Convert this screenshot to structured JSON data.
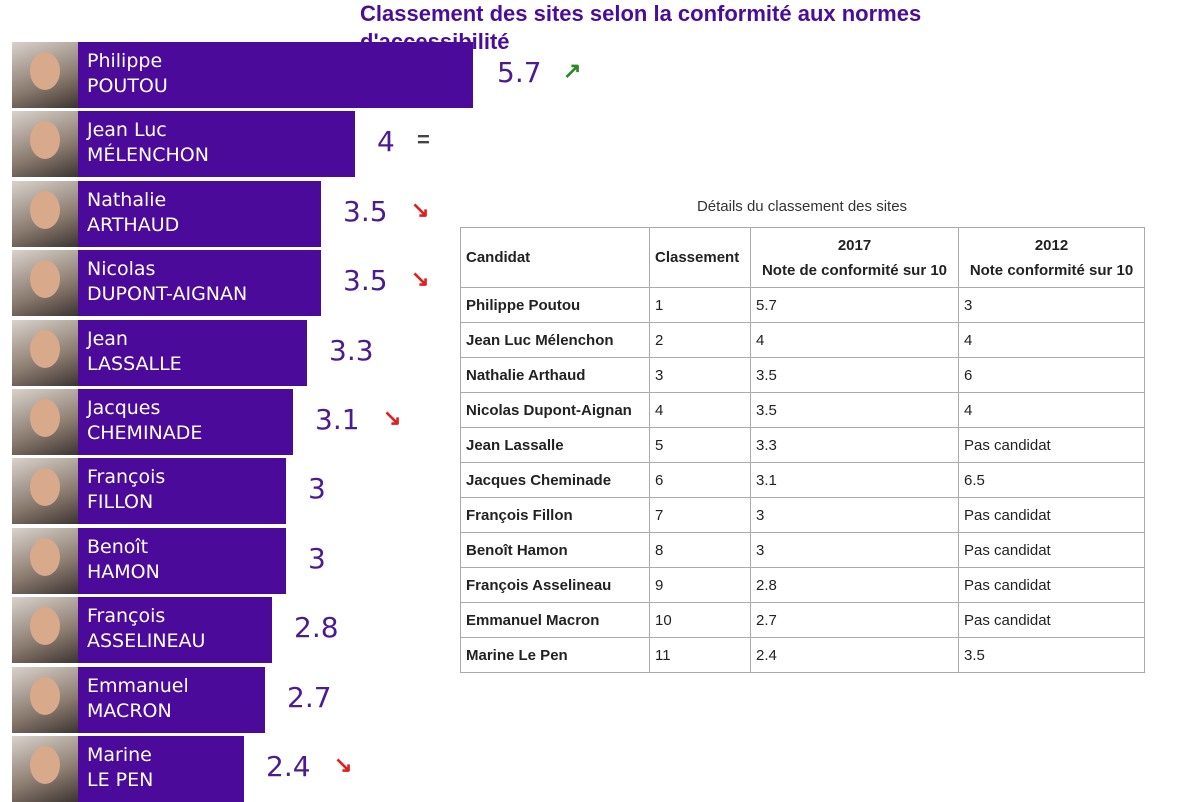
{
  "chart_data": {
    "type": "bar",
    "orientation": "horizontal",
    "title": "Classement des sites selon la conformité aux normes d'accessibilité",
    "bars": [
      {
        "first": "Philippe",
        "last": "POUTOU",
        "value": 5.7,
        "value_label": "5.7",
        "trend": "up"
      },
      {
        "first": "Jean Luc",
        "last": "MÉLENCHON",
        "value": 4,
        "value_label": "4",
        "trend": "equal"
      },
      {
        "first": "Nathalie",
        "last": "ARTHAUD",
        "value": 3.5,
        "value_label": "3.5",
        "trend": "down"
      },
      {
        "first": "Nicolas",
        "last": "DUPONT-AIGNAN",
        "value": 3.5,
        "value_label": "3.5",
        "trend": "down"
      },
      {
        "first": "Jean",
        "last": "LASSALLE",
        "value": 3.3,
        "value_label": "3.3",
        "trend": "none"
      },
      {
        "first": "Jacques",
        "last": "CHEMINADE",
        "value": 3.1,
        "value_label": "3.1",
        "trend": "down"
      },
      {
        "first": "François",
        "last": "FILLON",
        "value": 3,
        "value_label": "3",
        "trend": "none"
      },
      {
        "first": "Benoît",
        "last": "HAMON",
        "value": 3,
        "value_label": "3",
        "trend": "none"
      },
      {
        "first": "François",
        "last": "ASSELINEAU",
        "value": 2.8,
        "value_label": "2.8",
        "trend": "none"
      },
      {
        "first": "Emmanuel",
        "last": "MACRON",
        "value": 2.7,
        "value_label": "2.7",
        "trend": "none"
      },
      {
        "first": "Marine",
        "last": "LE PEN",
        "value": 2.4,
        "value_label": "2.4",
        "trend": "down"
      }
    ],
    "colors": {
      "bar": "#4b0a9a",
      "up": "#2a8a2a",
      "down": "#e02020",
      "equal": "#444444"
    }
  },
  "table": {
    "caption": "Détails du classement des sites",
    "headers": {
      "candidat": "Candidat",
      "classement": "Classement",
      "y2017": "2017",
      "y2017_sub": "Note de conformité sur 10",
      "y2012": "2012",
      "y2012_sub": "Note conformité sur 10"
    },
    "rows": [
      [
        "Philippe Poutou",
        "1",
        "5.7",
        "3"
      ],
      [
        "Jean Luc Mélenchon",
        "2",
        "4",
        "4"
      ],
      [
        "Nathalie Arthaud",
        "3",
        "3.5",
        "6"
      ],
      [
        "Nicolas Dupont-Aignan",
        "4",
        "3.5",
        "4"
      ],
      [
        "Jean Lassalle",
        "5",
        "3.3",
        "Pas candidat"
      ],
      [
        "Jacques Cheminade",
        "6",
        "3.1",
        "6.5"
      ],
      [
        "François Fillon",
        "7",
        "3",
        "Pas candidat"
      ],
      [
        "Benoît Hamon",
        "8",
        "3",
        "Pas candidat"
      ],
      [
        "François Asselineau",
        "9",
        "2.8",
        "Pas candidat"
      ],
      [
        "Emmanuel Macron",
        "10",
        "2.7",
        "Pas candidat"
      ],
      [
        "Marine Le Pen",
        "11",
        "2.4",
        "3.5"
      ]
    ]
  }
}
